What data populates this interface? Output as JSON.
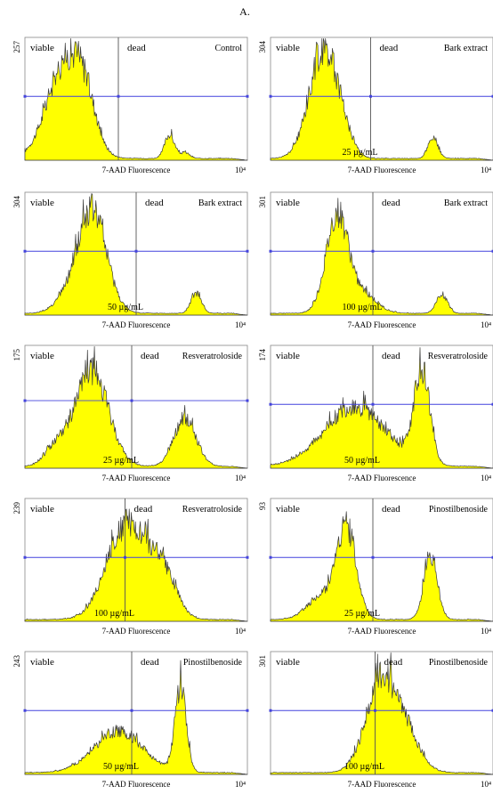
{
  "figure_label": "A.",
  "chart_data": [
    {
      "type": "area",
      "title": "Control",
      "concentration": "",
      "xlabel": "7-AAD Fluorescence",
      "x_max_label": "10⁴",
      "ymax_label": "257",
      "gates": [
        "viable",
        "dead"
      ],
      "xlim": [
        0,
        100
      ],
      "ylim": [
        0,
        257
      ],
      "gate_x": 42,
      "marker_y": 0.52,
      "peaks": [
        {
          "x": 18,
          "h": 0.78,
          "w": 8
        },
        {
          "x": 27,
          "h": 0.32,
          "w": 5
        },
        {
          "x": 65,
          "h": 0.2,
          "w": 2.2
        },
        {
          "x": 72,
          "h": 0.05,
          "w": 2
        }
      ]
    },
    {
      "type": "area",
      "title": "Bark extract",
      "concentration": "25 µg/mL",
      "xlabel": "7-AAD Fluorescence",
      "x_max_label": "10⁴",
      "ymax_label": "304",
      "gates": [
        "viable",
        "dead"
      ],
      "xlim": [
        0,
        100
      ],
      "ylim": [
        0,
        304
      ],
      "gate_x": 45,
      "marker_y": 0.52,
      "peaks": [
        {
          "x": 24,
          "h": 0.92,
          "w": 6.5
        },
        {
          "x": 33,
          "h": 0.08,
          "w": 4
        },
        {
          "x": 73,
          "h": 0.18,
          "w": 2.2
        }
      ]
    },
    {
      "type": "area",
      "title": "Bark extract",
      "concentration": "50 µg/mL",
      "xlabel": "7-AAD Fluorescence",
      "x_max_label": "10⁴",
      "ymax_label": "304",
      "gates": [
        "viable",
        "dead"
      ],
      "xlim": [
        0,
        100
      ],
      "ylim": [
        0,
        304
      ],
      "gate_x": 50,
      "marker_y": 0.52,
      "peaks": [
        {
          "x": 30,
          "h": 0.88,
          "w": 6.5
        },
        {
          "x": 17,
          "h": 0.08,
          "w": 5
        },
        {
          "x": 77,
          "h": 0.17,
          "w": 2.3
        }
      ]
    },
    {
      "type": "area",
      "title": "Bark extract",
      "concentration": "100 µg/mL",
      "xlabel": "7-AAD Fluorescence",
      "x_max_label": "10⁴",
      "ymax_label": "301",
      "gates": [
        "viable",
        "dead"
      ],
      "xlim": [
        0,
        100
      ],
      "ylim": [
        0,
        301
      ],
      "gate_x": 46,
      "marker_y": 0.52,
      "peaks": [
        {
          "x": 30,
          "h": 0.82,
          "w": 5
        },
        {
          "x": 42,
          "h": 0.15,
          "w": 6
        },
        {
          "x": 77,
          "h": 0.16,
          "w": 2.5
        }
      ]
    },
    {
      "type": "area",
      "title": "Resveratroloside",
      "concentration": "25 µg/mL",
      "xlabel": "7-AAD Fluorescence",
      "x_max_label": "10⁴",
      "ymax_label": "175",
      "gates": [
        "viable",
        "dead"
      ],
      "xlim": [
        0,
        100
      ],
      "ylim": [
        0,
        175
      ],
      "gate_x": 48,
      "marker_y": 0.55,
      "peaks": [
        {
          "x": 30,
          "h": 0.8,
          "w": 7.5
        },
        {
          "x": 14,
          "h": 0.15,
          "w": 5
        },
        {
          "x": 72,
          "h": 0.4,
          "w": 5
        }
      ]
    },
    {
      "type": "area",
      "title": "Resveratroloside",
      "concentration": "50 µg/mL",
      "xlabel": "7-AAD Fluorescence",
      "x_max_label": "10⁴",
      "ymax_label": "174",
      "gates": [
        "viable",
        "dead"
      ],
      "xlim": [
        0,
        100
      ],
      "ylim": [
        0,
        174
      ],
      "gate_x": 46,
      "marker_y": 0.52,
      "peaks": [
        {
          "x": 38,
          "h": 0.5,
          "w": 14
        },
        {
          "x": 68,
          "h": 0.78,
          "w": 3.5
        }
      ]
    },
    {
      "type": "area",
      "title": "Resveratroloside",
      "concentration": "100 µg/mL",
      "xlabel": "7-AAD Fluorescence",
      "x_max_label": "10⁴",
      "ymax_label": "239",
      "gates": [
        "viable",
        "dead"
      ],
      "xlim": [
        0,
        100
      ],
      "ylim": [
        0,
        239
      ],
      "gate_x": 45,
      "marker_y": 0.52,
      "peaks": [
        {
          "x": 46,
          "h": 0.8,
          "w": 9
        },
        {
          "x": 62,
          "h": 0.35,
          "w": 6
        }
      ]
    },
    {
      "type": "area",
      "title": "Pinostilbenoside",
      "concentration": "25 µg/mL",
      "xlabel": "7-AAD Fluorescence",
      "x_max_label": "10⁴",
      "ymax_label": "93",
      "gates": [
        "viable",
        "dead"
      ],
      "xlim": [
        0,
        100
      ],
      "ylim": [
        0,
        93
      ],
      "gate_x": 46,
      "marker_y": 0.52,
      "peaks": [
        {
          "x": 34,
          "h": 0.78,
          "w": 4.5
        },
        {
          "x": 22,
          "h": 0.18,
          "w": 6
        },
        {
          "x": 72,
          "h": 0.55,
          "w": 3
        }
      ]
    },
    {
      "type": "area",
      "title": "Pinostilbenoside",
      "concentration": "50 µg/mL",
      "xlabel": "7-AAD Fluorescence",
      "x_max_label": "10⁴",
      "ymax_label": "243",
      "gates": [
        "viable",
        "dead"
      ],
      "xlim": [
        0,
        100
      ],
      "ylim": [
        0,
        243
      ],
      "gate_x": 48,
      "marker_y": 0.52,
      "peaks": [
        {
          "x": 42,
          "h": 0.35,
          "w": 11
        },
        {
          "x": 70,
          "h": 0.72,
          "w": 2.5
        }
      ]
    },
    {
      "type": "area",
      "title": "Pinostilbenoside",
      "concentration": "100 µg/mL",
      "xlabel": "7-AAD Fluorescence",
      "x_max_label": "10⁴",
      "ymax_label": "301",
      "gates": [
        "viable",
        "dead"
      ],
      "xlim": [
        0,
        100
      ],
      "ylim": [
        0,
        301
      ],
      "gate_x": 47,
      "marker_y": 0.52,
      "peaks": [
        {
          "x": 50,
          "h": 0.78,
          "w": 7
        },
        {
          "x": 62,
          "h": 0.25,
          "w": 6
        }
      ]
    }
  ],
  "colors": {
    "fill": "#ffff00",
    "outline": "#3a3a3a",
    "marker": "#4444dd",
    "gate": "#555555"
  }
}
